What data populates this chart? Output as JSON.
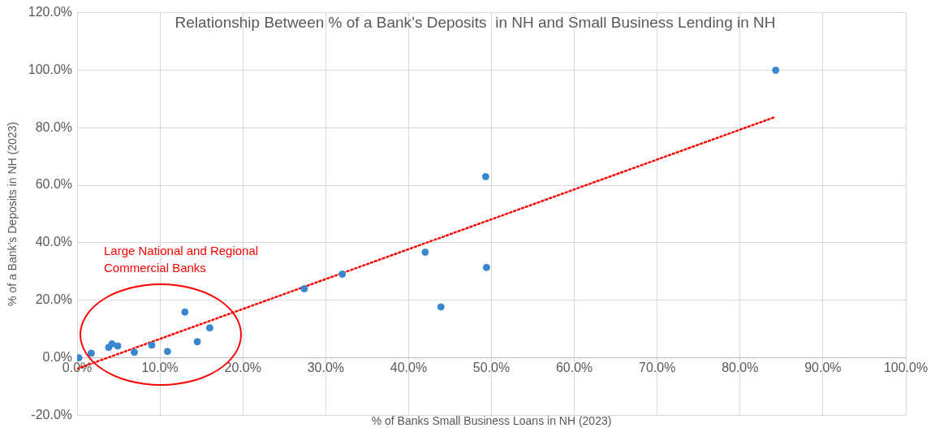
{
  "chart_data": {
    "type": "scatter",
    "title": "Relationship Between % of a Bank’s Deposits  in NH and Small Business Lending in NH",
    "xlabel": "% of Banks Small Business Loans in NH (2023)",
    "ylabel": "% of a Bank’s Deposits in NH (2023)",
    "series": [
      {
        "color": "#3a87cf",
        "marker": "circle",
        "x": [
          0.2,
          1.7,
          3.8,
          4.2,
          4.9,
          6.9,
          9.0,
          10.9,
          13.0,
          14.5,
          16.0,
          27.4,
          32.0,
          42.0,
          43.9,
          49.4,
          49.3,
          84.3
        ],
        "values": [
          0.0,
          1.6,
          3.6,
          4.8,
          4.1,
          1.9,
          4.4,
          2.2,
          15.9,
          5.6,
          10.4,
          24.0,
          29.1,
          36.7,
          17.7,
          31.4,
          63.0,
          100.0
        ]
      },
      {
        "type": "line",
        "color": "#ff0000",
        "line_style": "dotted",
        "x": [
          0.0,
          84.3
        ],
        "values": [
          -3.8,
          83.8
        ]
      }
    ],
    "xlim": [
      0,
      100
    ],
    "xticks": [
      {
        "value": 0,
        "label": "0.0%"
      },
      {
        "value": 10,
        "label": "10.0%"
      },
      {
        "value": 20,
        "label": "20.0%"
      },
      {
        "value": 30,
        "label": "30.0%"
      },
      {
        "value": 40,
        "label": "40.0%"
      },
      {
        "value": 50,
        "label": "50.0%"
      },
      {
        "value": 60,
        "label": "60.0%"
      },
      {
        "value": 70,
        "label": "70.0%"
      },
      {
        "value": 80,
        "label": "80.0%"
      },
      {
        "value": 90,
        "label": "90.0%"
      },
      {
        "value": 100,
        "label": "100.0%"
      }
    ],
    "ylim": [
      -20,
      120
    ],
    "yticks": [
      {
        "value": -20,
        "label": "-20.0%"
      },
      {
        "value": 0,
        "label": "0.0%"
      },
      {
        "value": 20,
        "label": "20.0%"
      },
      {
        "value": 40,
        "label": "40.0%"
      },
      {
        "value": 60,
        "label": "60.0%"
      },
      {
        "value": 80,
        "label": "80.0%"
      },
      {
        "value": 100,
        "label": "100.0%"
      },
      {
        "value": 120,
        "label": "120.0%"
      }
    ],
    "grid": true,
    "legend": false,
    "annotations": [
      "Large National and Regional Commercial Banks"
    ]
  }
}
